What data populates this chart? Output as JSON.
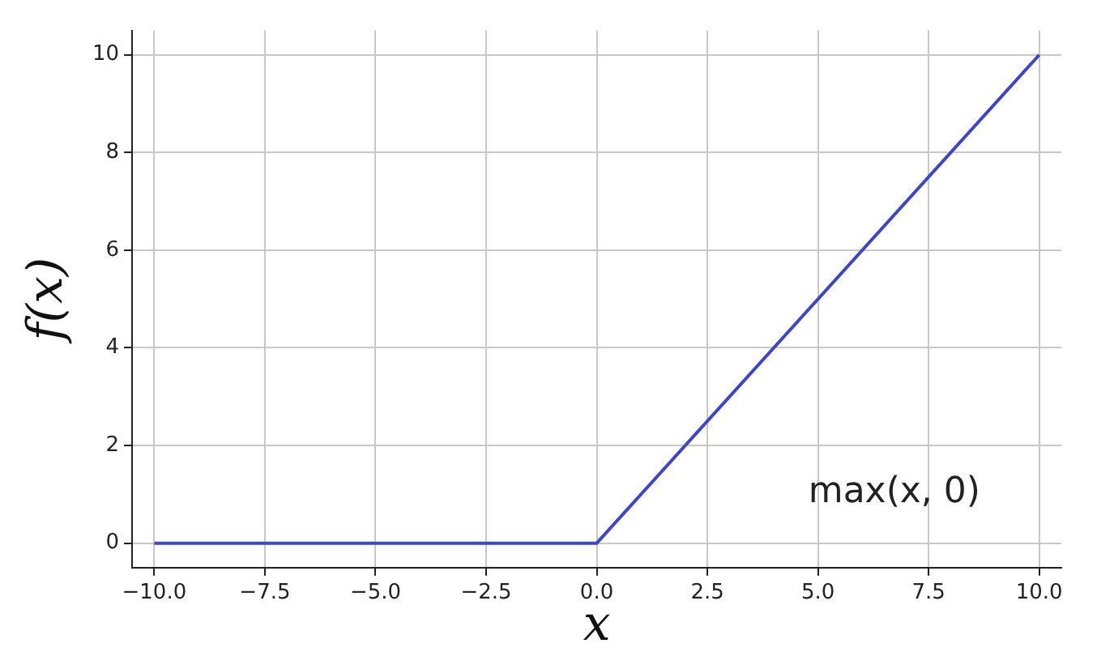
{
  "chart_data": {
    "type": "line",
    "xlabel": "x",
    "ylabel": "f(x)",
    "annotations": [
      "max(x, 0)"
    ],
    "x": [
      -10,
      0,
      10
    ],
    "series": [
      {
        "color": "#3f46c2",
        "values": [
          0,
          0,
          10
        ]
      }
    ],
    "xlim": [
      -10.5,
      10.5
    ],
    "xticks": [
      {
        "value": -10,
        "label": "−10.0"
      },
      {
        "value": -7.5,
        "label": "−7.5"
      },
      {
        "value": -5,
        "label": "−5.0"
      },
      {
        "value": -2.5,
        "label": "−2.5"
      },
      {
        "value": 0,
        "label": "0.0"
      },
      {
        "value": 2.5,
        "label": "2.5"
      },
      {
        "value": 5,
        "label": "5.0"
      },
      {
        "value": 7.5,
        "label": "7.5"
      },
      {
        "value": 10,
        "label": "10.0"
      }
    ],
    "ylim": [
      -0.5,
      10.5
    ],
    "yticks": [
      0,
      2,
      4,
      6,
      8,
      10
    ],
    "grid": true,
    "legend": false,
    "marker": "none",
    "line_style": "solid"
  }
}
